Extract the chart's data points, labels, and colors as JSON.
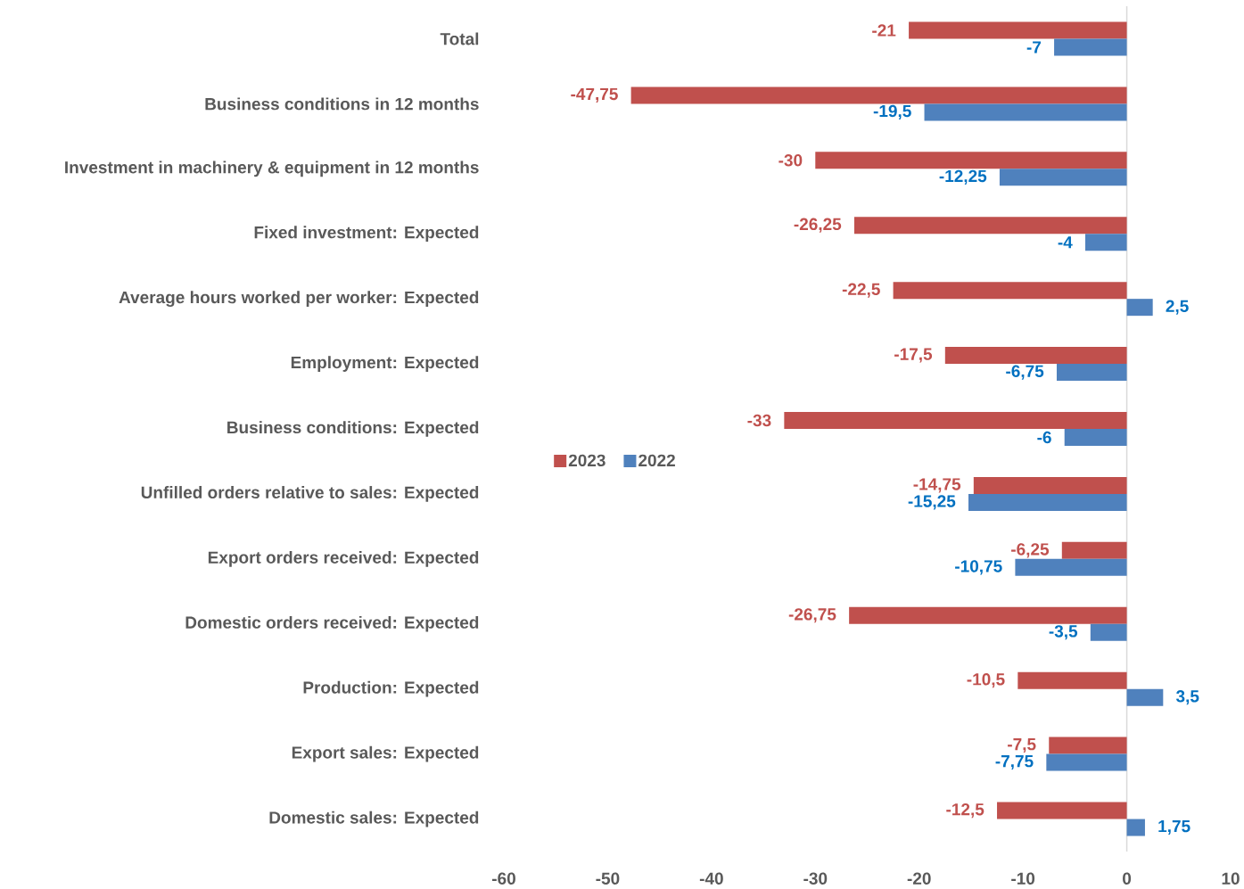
{
  "chart_data": {
    "type": "bar",
    "orientation": "horizontal",
    "categories": [
      "Total",
      "Business conditions in 12 months",
      "Investment in machinery & equipment in 12 months",
      "Fixed investment: Expected",
      "Average hours worked per worker: Expected",
      "Employment: Expected",
      "Business conditions: Expected",
      "Unfilled orders relative to sales: Expected",
      "Export orders received: Expected",
      "Domestic orders received: Expected",
      "Production: Expected",
      "Export sales: Expected",
      "Domestic sales: Expected"
    ],
    "series": [
      {
        "name": "2023",
        "color": "#c0504d",
        "values": [
          -21,
          -47.75,
          -30,
          -26.25,
          -22.5,
          -17.5,
          -33,
          -14.75,
          -6.25,
          -26.75,
          -10.5,
          -7.5,
          -12.5
        ],
        "value_labels": [
          "-21",
          "-47,75",
          "-30",
          "-26,25",
          "-22,5",
          "-17,5",
          "-33",
          "-14,75",
          "-6,25",
          "-26,75",
          "-10,5",
          "-7,5",
          "-12,5"
        ]
      },
      {
        "name": "2022",
        "color": "#4f81bd",
        "values": [
          -7,
          -19.5,
          -12.25,
          -4,
          2.5,
          -6.75,
          -6,
          -15.25,
          -10.75,
          -3.5,
          3.5,
          -7.75,
          1.75
        ],
        "value_labels": [
          "-7",
          "-19,5",
          "-12,25",
          "-4",
          "2,5",
          "-6,75",
          "-6",
          "-15,25",
          "-10,75",
          "-3,5",
          "3,5",
          "-7,75",
          "1,75"
        ]
      }
    ],
    "xlim": [
      -60,
      10
    ],
    "xticks": [
      -60,
      -50,
      -40,
      -30,
      -20,
      -10,
      0,
      10
    ],
    "legend": "left"
  }
}
